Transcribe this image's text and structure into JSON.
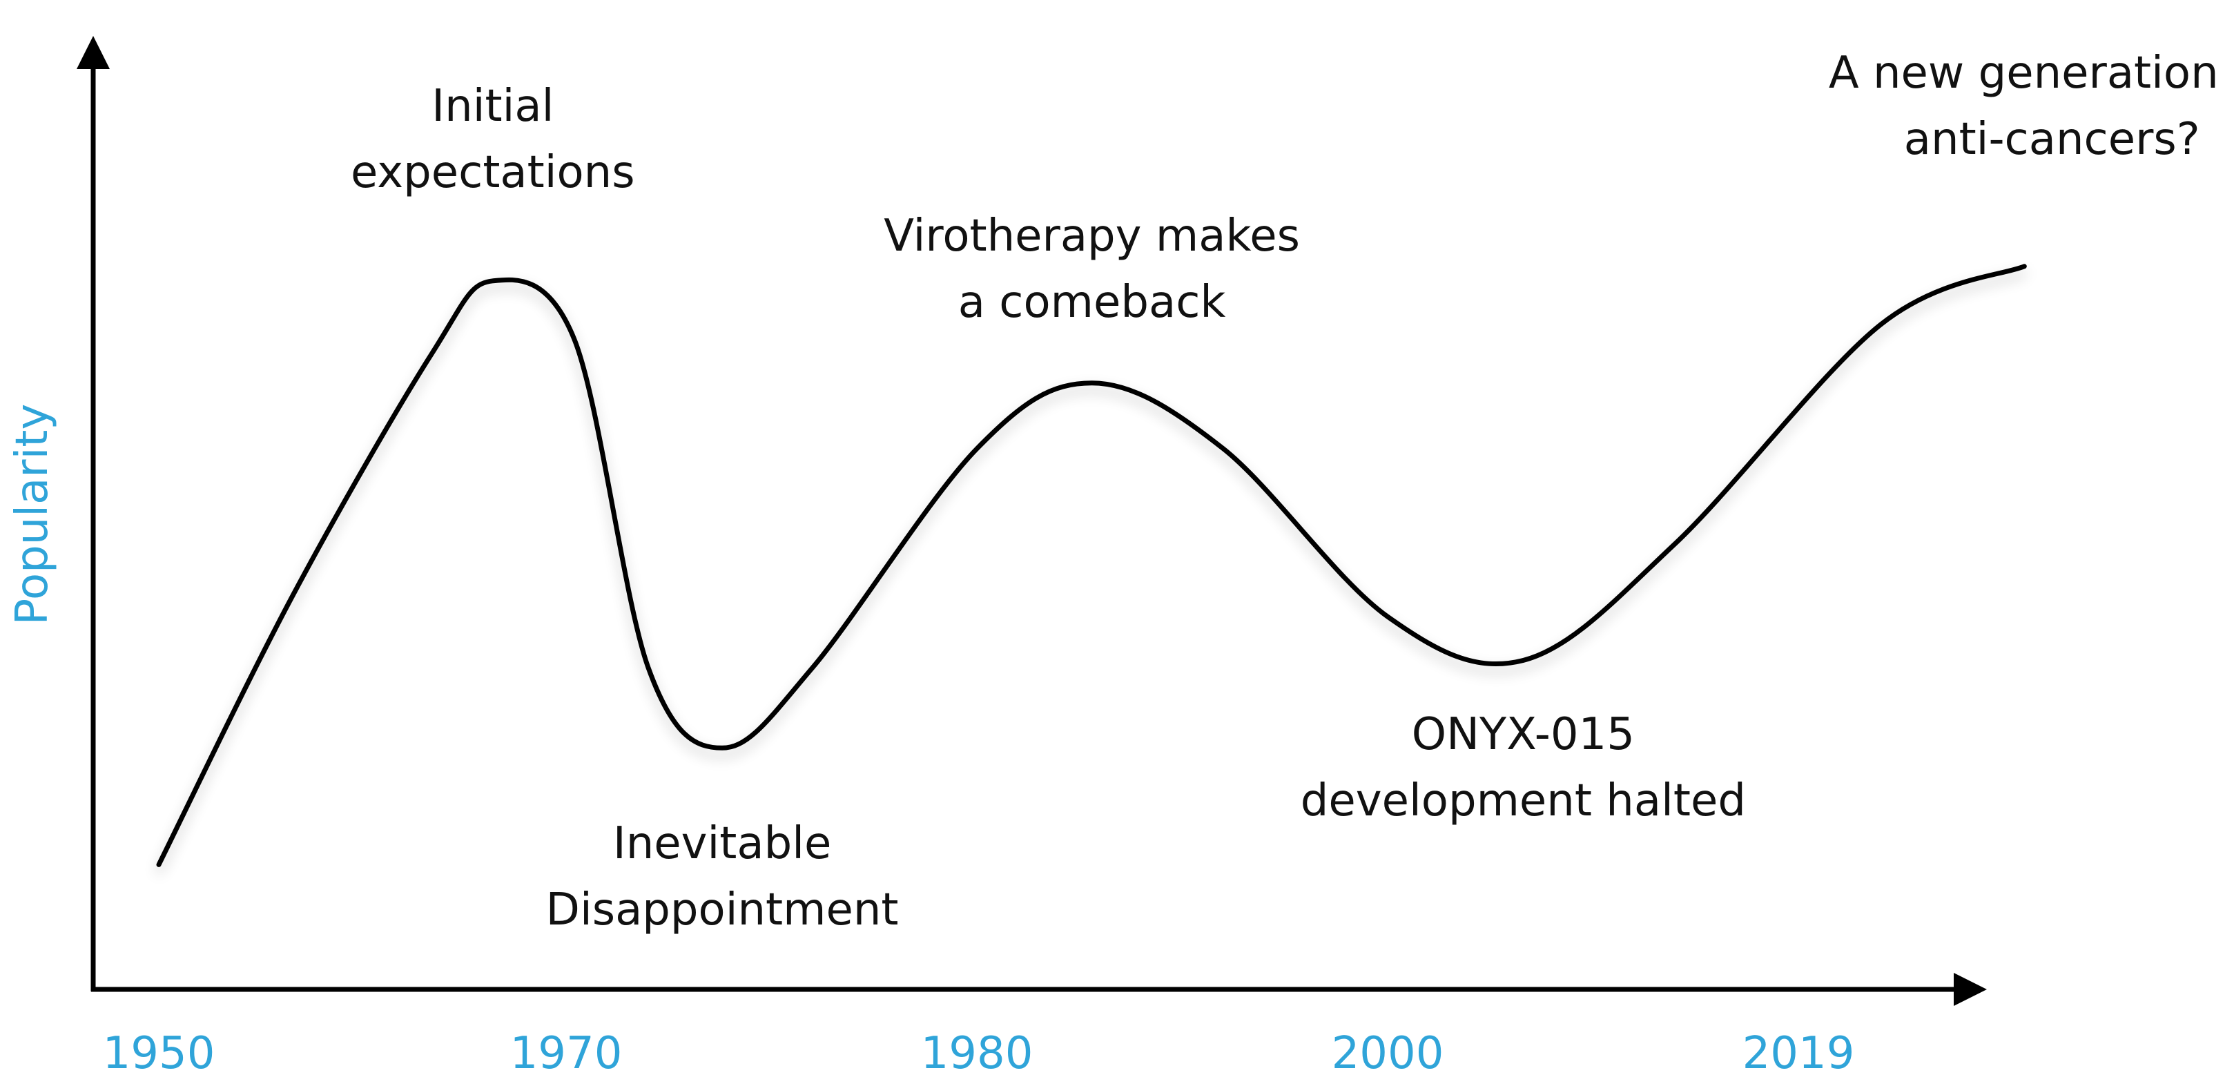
{
  "chart_data": {
    "type": "line",
    "title": "",
    "xlabel": "",
    "ylabel": "Popularity",
    "x_ticks": [
      "1950",
      "1970",
      "1980",
      "2000",
      "2019"
    ],
    "y_ticks": [],
    "grid": false,
    "legend": "none",
    "series": [
      {
        "values": [
          {
            "x_tick_index": 0.0,
            "y": 8
          },
          {
            "x_tick_index": 0.33,
            "y": 45
          },
          {
            "x_tick_index": 0.67,
            "y": 78
          },
          {
            "x_tick_index": 0.82,
            "y": 88
          },
          {
            "x_tick_index": 1.02,
            "y": 80
          },
          {
            "x_tick_index": 1.2,
            "y": 35
          },
          {
            "x_tick_index": 1.38,
            "y": 24
          },
          {
            "x_tick_index": 1.6,
            "y": 35
          },
          {
            "x_tick_index": 2.0,
            "y": 65
          },
          {
            "x_tick_index": 2.28,
            "y": 74
          },
          {
            "x_tick_index": 2.6,
            "y": 65
          },
          {
            "x_tick_index": 3.0,
            "y": 42
          },
          {
            "x_tick_index": 3.33,
            "y": 36
          },
          {
            "x_tick_index": 3.7,
            "y": 52
          },
          {
            "x_tick_index": 4.2,
            "y": 82
          },
          {
            "x_tick_index": 4.55,
            "y": 90
          }
        ]
      }
    ],
    "annotations": [
      {
        "lines": [
          "Initial",
          "expectations"
        ],
        "x_tick_index": 0.82
      },
      {
        "lines": [
          "Inevitable",
          "Disappointment"
        ],
        "x_tick_index": 1.38
      },
      {
        "lines": [
          "Virotherapy makes",
          "a comeback"
        ],
        "x_tick_index": 2.28
      },
      {
        "lines": [
          "ONYX-015",
          "development halted"
        ],
        "x_tick_index": 3.33
      },
      {
        "lines": [
          "A new generation of",
          "anti-cancers?"
        ],
        "x_tick_index": 4.55
      }
    ],
    "colors": {
      "line": "#000000",
      "axis": "#000000",
      "tick_label": "#2fa4d9",
      "axis_title": "#2fa4d9",
      "annotation": "#111111"
    }
  }
}
